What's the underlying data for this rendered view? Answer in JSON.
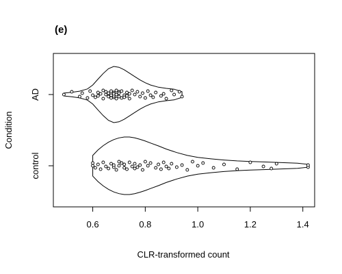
{
  "chart_data": {
    "type": "violin",
    "panel_label": "(e)",
    "xlabel": "CLR-transformed count",
    "ylabel": "Condition",
    "xlim": [
      0.45,
      1.445
    ],
    "x_ticks": [
      0.6,
      0.8,
      1.0,
      1.2,
      1.4
    ],
    "x_tick_labels": [
      "0.6",
      "0.8",
      "1.0",
      "1.2",
      "1.4"
    ],
    "categories": [
      "AD",
      "control"
    ],
    "grid": false,
    "series": [
      {
        "name": "AD",
        "density_x": [
          0.49,
          0.5,
          0.52,
          0.55,
          0.58,
          0.6,
          0.62,
          0.64,
          0.66,
          0.68,
          0.7,
          0.72,
          0.74,
          0.76,
          0.78,
          0.8,
          0.82,
          0.85,
          0.88,
          0.91,
          0.94
        ],
        "density_w": [
          0.05,
          0.06,
          0.08,
          0.12,
          0.2,
          0.34,
          0.55,
          0.75,
          0.92,
          1.0,
          0.97,
          0.88,
          0.76,
          0.64,
          0.52,
          0.42,
          0.34,
          0.26,
          0.22,
          0.19,
          0.1
        ],
        "points": [
          0.49,
          0.52,
          0.55,
          0.56,
          0.58,
          0.59,
          0.6,
          0.61,
          0.62,
          0.62,
          0.63,
          0.64,
          0.64,
          0.65,
          0.65,
          0.66,
          0.66,
          0.67,
          0.67,
          0.67,
          0.68,
          0.68,
          0.68,
          0.68,
          0.69,
          0.69,
          0.69,
          0.7,
          0.7,
          0.7,
          0.71,
          0.71,
          0.72,
          0.72,
          0.73,
          0.73,
          0.74,
          0.74,
          0.75,
          0.76,
          0.77,
          0.78,
          0.79,
          0.8,
          0.81,
          0.82,
          0.83,
          0.84,
          0.86,
          0.87,
          0.88,
          0.9,
          0.91,
          0.93,
          0.94
        ]
      },
      {
        "name": "control",
        "density_x": [
          0.6,
          0.62,
          0.64,
          0.66,
          0.68,
          0.7,
          0.72,
          0.74,
          0.76,
          0.78,
          0.8,
          0.82,
          0.85,
          0.88,
          0.92,
          0.96,
          1.0,
          1.05,
          1.1,
          1.15,
          1.2,
          1.26,
          1.32,
          1.38,
          1.42
        ],
        "density_w": [
          0.36,
          0.55,
          0.7,
          0.82,
          0.91,
          0.97,
          1.0,
          1.0,
          0.97,
          0.92,
          0.86,
          0.79,
          0.69,
          0.58,
          0.46,
          0.36,
          0.29,
          0.24,
          0.2,
          0.17,
          0.15,
          0.13,
          0.11,
          0.09,
          0.05
        ],
        "points": [
          0.6,
          0.6,
          0.61,
          0.62,
          0.63,
          0.64,
          0.65,
          0.66,
          0.67,
          0.68,
          0.68,
          0.69,
          0.7,
          0.7,
          0.71,
          0.72,
          0.72,
          0.73,
          0.74,
          0.75,
          0.76,
          0.76,
          0.77,
          0.78,
          0.79,
          0.8,
          0.81,
          0.82,
          0.84,
          0.85,
          0.86,
          0.87,
          0.88,
          0.89,
          0.9,
          0.92,
          0.94,
          0.96,
          0.98,
          1.0,
          1.02,
          1.06,
          1.1,
          1.15,
          1.2,
          1.25,
          1.28,
          1.3,
          1.42,
          1.42
        ]
      }
    ]
  }
}
